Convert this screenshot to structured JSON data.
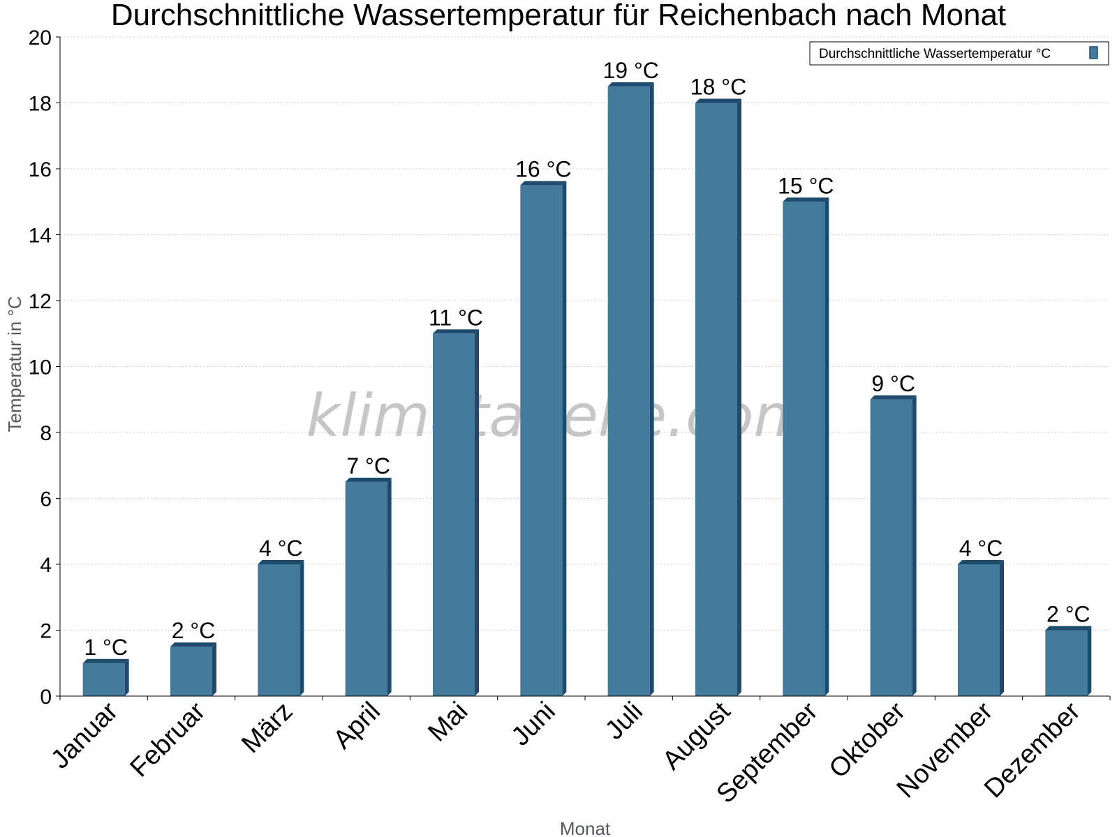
{
  "chart_data": {
    "type": "bar",
    "title": "Durchschnittliche Wassertemperatur für Reichenbach nach Monat",
    "xlabel": "Monat",
    "ylabel": "Temperatur in °C",
    "categories": [
      "Januar",
      "Februar",
      "März",
      "April",
      "Mai",
      "Juni",
      "Juli",
      "August",
      "September",
      "Oktober",
      "November",
      "Dezember"
    ],
    "series": [
      {
        "name": "Durchschnittliche Wassertemperatur °C",
        "values": [
          1,
          1.5,
          4,
          6.5,
          11,
          15.5,
          18.5,
          18,
          15,
          9,
          4,
          2
        ],
        "labels": [
          "1 °C",
          "2 °C",
          "4 °C",
          "7 °C",
          "11 °C",
          "16 °C",
          "19 °C",
          "18 °C",
          "15 °C",
          "9 °C",
          "4 °C",
          "2 °C"
        ],
        "color": "#447a9c",
        "shade_color": "#1e4a6b"
      }
    ],
    "ylim": [
      0,
      20
    ],
    "yticks": [
      0,
      2,
      4,
      6,
      8,
      10,
      12,
      14,
      16,
      18,
      20
    ],
    "grid": true,
    "legend_position": "top-right",
    "watermark": "klimatabelle.com"
  }
}
